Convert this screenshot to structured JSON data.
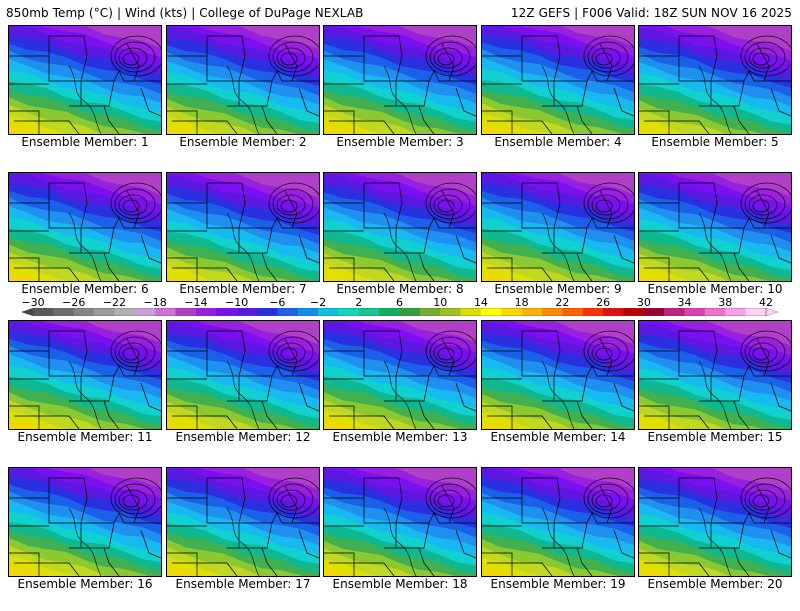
{
  "header": {
    "left_title": "850mb Temp (°C) | Wind (kts) | College of DuPage NEXLAB",
    "right_title": "12Z GEFS | F006 Valid: 18Z SUN NOV 16 2025"
  },
  "colorbar": {
    "tick_labels": [
      "−30",
      "−26",
      "−22",
      "−18",
      "−14",
      "−10",
      "−6",
      "−2",
      "2",
      "6",
      "10",
      "14",
      "18",
      "22",
      "26",
      "30",
      "34",
      "38",
      "42"
    ],
    "colors": [
      "#5a5a5a",
      "#6e6e6e",
      "#858585",
      "#9a9a9a",
      "#b0b0b0",
      "#c9a0d8",
      "#d070d8",
      "#b040c8",
      "#9a20e0",
      "#7a10f0",
      "#5a18e0",
      "#2a30e0",
      "#1a60e8",
      "#1090e8",
      "#10c0e0",
      "#10d8c0",
      "#10c890",
      "#10b060",
      "#30a040",
      "#70b030",
      "#a0c020",
      "#d8e000",
      "#ffff00",
      "#ffd800",
      "#ffb000",
      "#ff8a00",
      "#ff6000",
      "#ff3000",
      "#e01010",
      "#c00000",
      "#a00030",
      "#c02080",
      "#e040b0",
      "#f070d0",
      "#f8a0e8",
      "#ffd0f8"
    ],
    "map_colors": [
      "#e8b800",
      "#f0d800",
      "#e0e000",
      "#c0d820",
      "#8cc830",
      "#40b050",
      "#10b890",
      "#10d0d0",
      "#18b8f0",
      "#2090f0",
      "#1a60e8",
      "#2a30e0",
      "#5a18e0",
      "#7a10f0",
      "#9a20e0",
      "#b040c8"
    ]
  },
  "panels": [
    {
      "label": "Ensemble Member: 1",
      "band_shift": 0
    },
    {
      "label": "Ensemble Member: 2",
      "band_shift": 1
    },
    {
      "label": "Ensemble Member: 3",
      "band_shift": 0
    },
    {
      "label": "Ensemble Member: 4",
      "band_shift": -1
    },
    {
      "label": "Ensemble Member: 5",
      "band_shift": 2
    },
    {
      "label": "Ensemble Member: 6",
      "band_shift": 0
    },
    {
      "label": "Ensemble Member: 7",
      "band_shift": 2
    },
    {
      "label": "Ensemble Member: 8",
      "band_shift": 1
    },
    {
      "label": "Ensemble Member: 9",
      "band_shift": 0
    },
    {
      "label": "Ensemble Member: 10",
      "band_shift": 1
    },
    {
      "label": "Ensemble Member: 11",
      "band_shift": 0
    },
    {
      "label": "Ensemble Member: 12",
      "band_shift": 1
    },
    {
      "label": "Ensemble Member: 13",
      "band_shift": 0
    },
    {
      "label": "Ensemble Member: 14",
      "band_shift": 1
    },
    {
      "label": "Ensemble Member: 15",
      "band_shift": 2
    },
    {
      "label": "Ensemble Member: 16",
      "band_shift": -1
    },
    {
      "label": "Ensemble Member: 17",
      "band_shift": 0
    },
    {
      "label": "Ensemble Member: 18",
      "band_shift": 1
    },
    {
      "label": "Ensemble Member: 19",
      "band_shift": 0
    },
    {
      "label": "Ensemble Member: 20",
      "band_shift": 1
    }
  ]
}
